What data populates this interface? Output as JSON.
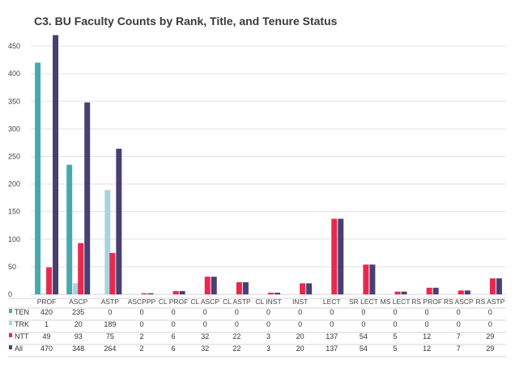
{
  "chart_data": {
    "type": "bar",
    "title": "C3. BU Faculty Counts by Rank, Title, and Tenure Status",
    "xlabel": "",
    "ylabel": "",
    "ylim": [
      0,
      475
    ],
    "yticks": [
      0,
      50,
      100,
      150,
      200,
      250,
      300,
      350,
      400,
      450
    ],
    "grid": true,
    "legend": "data-table",
    "categories": [
      "PROF",
      "ASCP",
      "ASTP",
      "ASCPPP",
      "CL PROF",
      "CL ASCP",
      "CL ASTP",
      "CL INST",
      "INST",
      "LECT",
      "SR LECT",
      "MS LECT",
      "RS PROF",
      "RS ASCP",
      "RS ASTP"
    ],
    "series": [
      {
        "name": "TEN",
        "color": "#4aa8ad",
        "values": [
          420,
          235,
          0,
          0,
          0,
          0,
          0,
          0,
          0,
          0,
          0,
          0,
          0,
          0,
          0
        ]
      },
      {
        "name": "TRK",
        "color": "#aad3df",
        "values": [
          1,
          20,
          189,
          0,
          0,
          0,
          0,
          0,
          0,
          0,
          0,
          0,
          0,
          0,
          0
        ]
      },
      {
        "name": "NTT",
        "color": "#e8294e",
        "values": [
          49,
          93,
          75,
          2,
          6,
          32,
          22,
          3,
          20,
          137,
          54,
          5,
          12,
          7,
          29
        ]
      },
      {
        "name": "All",
        "color": "#4a3f72",
        "values": [
          470,
          348,
          264,
          2,
          6,
          32,
          22,
          3,
          20,
          137,
          54,
          5,
          12,
          7,
          29
        ]
      }
    ]
  }
}
